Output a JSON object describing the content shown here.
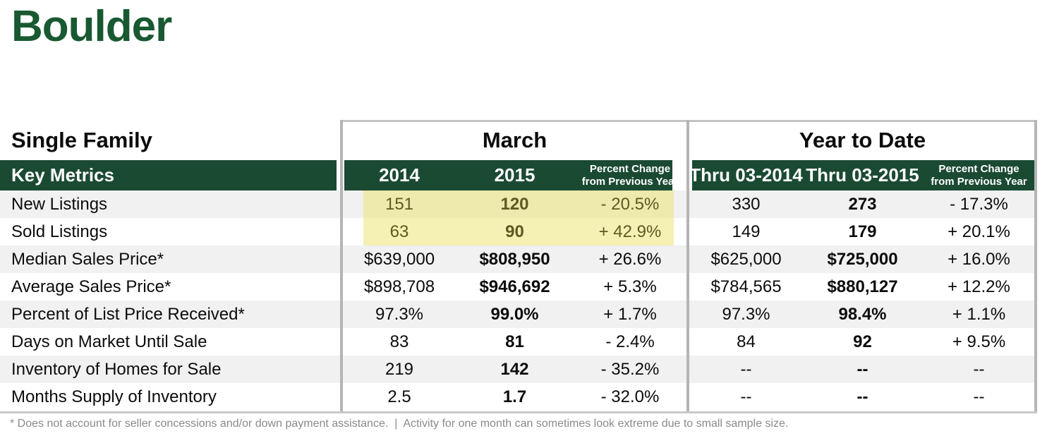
{
  "title": "Boulder",
  "table": {
    "section_label": "Single Family",
    "key_metrics_label": "Key Metrics",
    "group_headers": [
      "March",
      "Year to Date"
    ],
    "columns": [
      "2014",
      "2015",
      "Percent Change from Previous Year",
      "Thru 03-2014",
      "Thru 03-2015",
      "Percent Change from Previous Year"
    ],
    "rows": [
      {
        "label": "New Listings",
        "values": [
          "151",
          "120",
          "- 20.5%",
          "330",
          "273",
          "- 17.3%"
        ],
        "highlight_march": true
      },
      {
        "label": "Sold Listings",
        "values": [
          "63",
          "90",
          "+ 42.9%",
          "149",
          "179",
          "+ 20.1%"
        ],
        "highlight_march": true
      },
      {
        "label": "Median Sales Price*",
        "values": [
          "$639,000",
          "$808,950",
          "+ 26.6%",
          "$625,000",
          "$725,000",
          "+ 16.0%"
        ],
        "highlight_march": false
      },
      {
        "label": "Average Sales Price*",
        "values": [
          "$898,708",
          "$946,692",
          "+ 5.3%",
          "$784,565",
          "$880,127",
          "+ 12.2%"
        ],
        "highlight_march": false
      },
      {
        "label": "Percent of List Price Received*",
        "values": [
          "97.3%",
          "99.0%",
          "+ 1.7%",
          "97.3%",
          "98.4%",
          "+ 1.1%"
        ],
        "highlight_march": false
      },
      {
        "label": "Days on Market Until Sale",
        "values": [
          "83",
          "81",
          "- 2.4%",
          "84",
          "92",
          "+ 9.5%"
        ],
        "highlight_march": false
      },
      {
        "label": "Inventory of Homes for Sale",
        "values": [
          "219",
          "142",
          "- 35.2%",
          "--",
          "--",
          "--"
        ],
        "highlight_march": false
      },
      {
        "label": "Months Supply of Inventory",
        "values": [
          "2.5",
          "1.7",
          "- 32.0%",
          "--",
          "--",
          "--"
        ],
        "highlight_march": false
      }
    ],
    "footnote": "* Does not account for seller concessions and/or down payment assistance.  |  Activity for one month can sometimes look extreme due to small sample size."
  },
  "colors": {
    "title_green": "#185931",
    "header_bar_green": "#1b4a33",
    "highlight_yellow": "#f3efad",
    "highlight_text_olive": "#5c5a22",
    "row_stripe_gray": "#f1f1f1",
    "border_gray": "#b5b5b5",
    "footnote_gray": "#8a8a8a"
  }
}
